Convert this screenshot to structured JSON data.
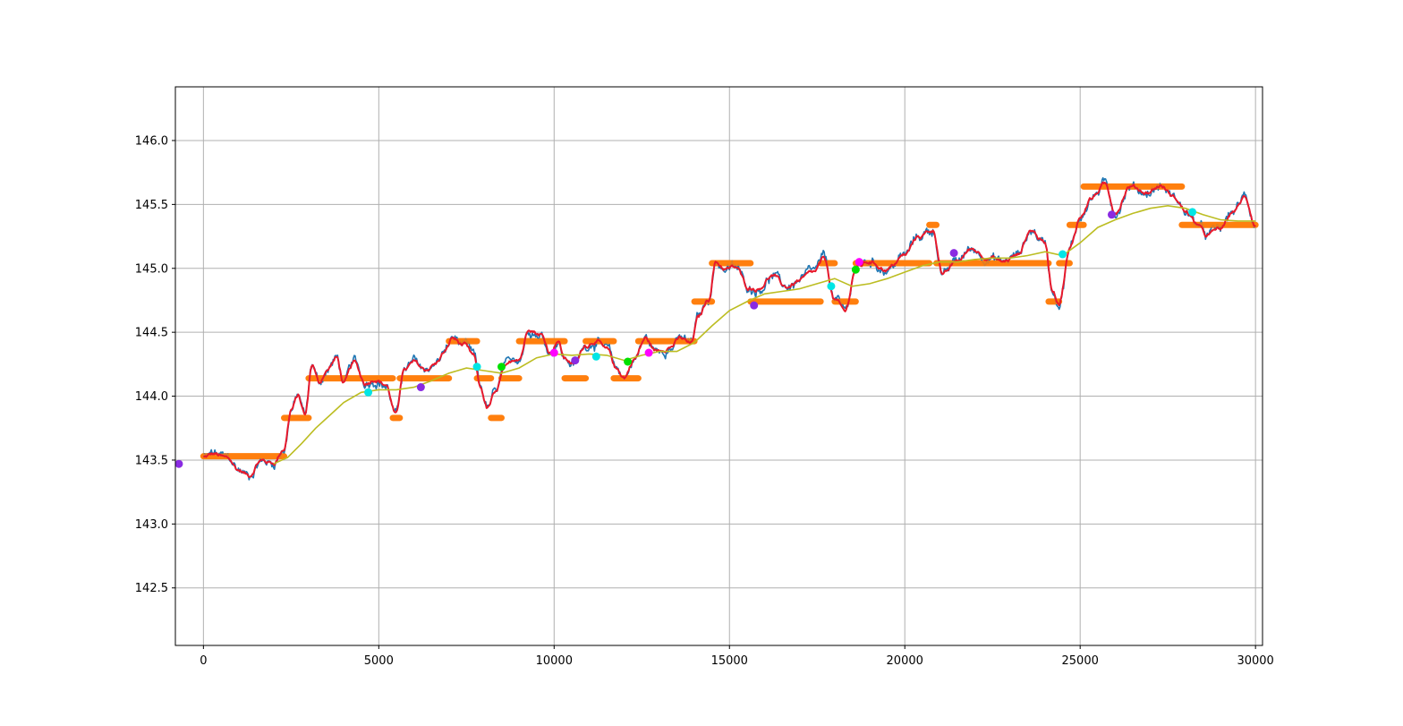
{
  "chart_data": {
    "type": "line",
    "title": "",
    "xlabel": "",
    "ylabel": "",
    "xlim": [
      -800,
      30200
    ],
    "ylim": [
      142.05,
      146.42
    ],
    "grid": true,
    "xticks": [
      0,
      5000,
      10000,
      15000,
      20000,
      25000,
      30000
    ],
    "xtick_labels": [
      "0",
      "5000",
      "10000",
      "15000",
      "20000",
      "25000",
      "30000"
    ],
    "yticks": [
      142.5,
      143.0,
      143.5,
      144.0,
      144.5,
      145.0,
      145.5,
      146.0
    ],
    "ytick_labels": [
      "142.5",
      "143.0",
      "143.5",
      "144.0",
      "144.5",
      "145.0",
      "145.5",
      "146.0"
    ],
    "colors": {
      "price": "#1f77b4",
      "smoothed": "#e8192c",
      "moving_average": "#bcbd22",
      "levels": "#ff7f0e",
      "grid": "#b0b0b0",
      "marker_purple": "#8a2be2",
      "marker_cyan": "#00e5e5",
      "marker_green": "#00e000",
      "marker_magenta": "#ff00ff"
    },
    "price_anchors": [
      [
        0,
        143.52
      ],
      [
        300,
        143.54
      ],
      [
        700,
        143.5
      ],
      [
        1000,
        143.42
      ],
      [
        1300,
        143.38
      ],
      [
        1600,
        143.5
      ],
      [
        2000,
        143.48
      ],
      [
        2300,
        143.6
      ],
      [
        2500,
        143.9
      ],
      [
        2700,
        144.0
      ],
      [
        2900,
        143.85
      ],
      [
        3100,
        144.25
      ],
      [
        3300,
        144.1
      ],
      [
        3500,
        144.2
      ],
      [
        3800,
        144.3
      ],
      [
        4000,
        144.1
      ],
      [
        4300,
        144.25
      ],
      [
        4600,
        144.1
      ],
      [
        4900,
        144.15
      ],
      [
        5200,
        144.1
      ],
      [
        5500,
        143.85
      ],
      [
        5700,
        144.2
      ],
      [
        6000,
        144.25
      ],
      [
        6300,
        144.2
      ],
      [
        6600,
        144.25
      ],
      [
        6900,
        144.35
      ],
      [
        7100,
        144.45
      ],
      [
        7400,
        144.4
      ],
      [
        7700,
        144.3
      ],
      [
        7900,
        144.05
      ],
      [
        8100,
        143.9
      ],
      [
        8300,
        144.0
      ],
      [
        8600,
        144.2
      ],
      [
        9000,
        144.3
      ],
      [
        9300,
        144.55
      ],
      [
        9600,
        144.5
      ],
      [
        9900,
        144.35
      ],
      [
        10100,
        144.45
      ],
      [
        10300,
        144.3
      ],
      [
        10600,
        144.25
      ],
      [
        10900,
        144.4
      ],
      [
        11200,
        144.45
      ],
      [
        11500,
        144.35
      ],
      [
        11800,
        144.2
      ],
      [
        12000,
        144.15
      ],
      [
        12300,
        144.3
      ],
      [
        12600,
        144.45
      ],
      [
        12900,
        144.35
      ],
      [
        13300,
        144.4
      ],
      [
        13600,
        144.45
      ],
      [
        13900,
        144.4
      ],
      [
        14100,
        144.6
      ],
      [
        14400,
        144.75
      ],
      [
        14600,
        145.05
      ],
      [
        14900,
        145.0
      ],
      [
        15200,
        145.0
      ],
      [
        15500,
        144.85
      ],
      [
        15800,
        144.85
      ],
      [
        16200,
        144.95
      ],
      [
        16600,
        144.85
      ],
      [
        17000,
        144.9
      ],
      [
        17400,
        144.95
      ],
      [
        17700,
        145.05
      ],
      [
        18000,
        144.75
      ],
      [
        18300,
        144.65
      ],
      [
        18600,
        145.0
      ],
      [
        19000,
        145.05
      ],
      [
        19500,
        145.0
      ],
      [
        20000,
        145.1
      ],
      [
        20400,
        145.25
      ],
      [
        20800,
        145.3
      ],
      [
        21100,
        144.95
      ],
      [
        21500,
        145.05
      ],
      [
        21900,
        145.15
      ],
      [
        22400,
        145.1
      ],
      [
        22800,
        145.05
      ],
      [
        23200,
        145.1
      ],
      [
        23600,
        145.3
      ],
      [
        24000,
        145.2
      ],
      [
        24200,
        144.85
      ],
      [
        24400,
        144.75
      ],
      [
        24700,
        145.15
      ],
      [
        25000,
        145.4
      ],
      [
        25300,
        145.55
      ],
      [
        25700,
        145.65
      ],
      [
        26000,
        145.45
      ],
      [
        26400,
        145.65
      ],
      [
        26900,
        145.6
      ],
      [
        27300,
        145.65
      ],
      [
        27700,
        145.55
      ],
      [
        28000,
        145.45
      ],
      [
        28300,
        145.35
      ],
      [
        28600,
        145.25
      ],
      [
        29000,
        145.3
      ],
      [
        29400,
        145.45
      ],
      [
        29700,
        145.55
      ],
      [
        30000,
        145.35
      ]
    ],
    "moving_average": [
      [
        2000,
        143.47
      ],
      [
        2400,
        143.52
      ],
      [
        2800,
        143.63
      ],
      [
        3200,
        143.75
      ],
      [
        3600,
        143.85
      ],
      [
        4000,
        143.95
      ],
      [
        4500,
        144.03
      ],
      [
        5000,
        144.05
      ],
      [
        5500,
        144.05
      ],
      [
        6000,
        144.07
      ],
      [
        6500,
        144.12
      ],
      [
        7000,
        144.18
      ],
      [
        7500,
        144.22
      ],
      [
        8000,
        144.2
      ],
      [
        8500,
        144.18
      ],
      [
        9000,
        144.22
      ],
      [
        9500,
        144.3
      ],
      [
        10000,
        144.33
      ],
      [
        10500,
        144.32
      ],
      [
        11000,
        144.33
      ],
      [
        11500,
        144.32
      ],
      [
        12000,
        144.28
      ],
      [
        12500,
        144.32
      ],
      [
        13000,
        144.35
      ],
      [
        13500,
        144.35
      ],
      [
        14000,
        144.42
      ],
      [
        14500,
        144.55
      ],
      [
        15000,
        144.67
      ],
      [
        15500,
        144.74
      ],
      [
        16000,
        144.8
      ],
      [
        16500,
        144.82
      ],
      [
        17000,
        144.84
      ],
      [
        17500,
        144.88
      ],
      [
        18000,
        144.92
      ],
      [
        18500,
        144.86
      ],
      [
        19000,
        144.88
      ],
      [
        19500,
        144.92
      ],
      [
        20000,
        144.97
      ],
      [
        20500,
        145.02
      ],
      [
        21000,
        145.05
      ],
      [
        21500,
        145.05
      ],
      [
        22000,
        145.07
      ],
      [
        22500,
        145.08
      ],
      [
        23000,
        145.08
      ],
      [
        23500,
        145.1
      ],
      [
        24000,
        145.13
      ],
      [
        24500,
        145.1
      ],
      [
        25000,
        145.2
      ],
      [
        25500,
        145.32
      ],
      [
        26000,
        145.38
      ],
      [
        26500,
        145.43
      ],
      [
        27000,
        145.47
      ],
      [
        27500,
        145.49
      ],
      [
        28000,
        145.47
      ],
      [
        28500,
        145.42
      ],
      [
        29000,
        145.38
      ],
      [
        29500,
        145.37
      ],
      [
        30000,
        145.37
      ]
    ],
    "levels": [
      [
        0,
        2300,
        143.53
      ],
      [
        2300,
        3000,
        143.83
      ],
      [
        3000,
        5400,
        144.14
      ],
      [
        5400,
        5600,
        143.83
      ],
      [
        5600,
        7000,
        144.14
      ],
      [
        7000,
        7800,
        144.43
      ],
      [
        7800,
        8200,
        144.14
      ],
      [
        8200,
        8500,
        143.83
      ],
      [
        8500,
        9000,
        144.14
      ],
      [
        9000,
        10300,
        144.43
      ],
      [
        10300,
        10900,
        144.14
      ],
      [
        10900,
        11700,
        144.43
      ],
      [
        11700,
        12400,
        144.14
      ],
      [
        12400,
        14000,
        144.43
      ],
      [
        14000,
        14500,
        144.74
      ],
      [
        14500,
        15600,
        145.04
      ],
      [
        15600,
        17600,
        144.74
      ],
      [
        17600,
        18000,
        145.04
      ],
      [
        18000,
        18600,
        144.74
      ],
      [
        18600,
        20700,
        145.04
      ],
      [
        20700,
        20900,
        145.34
      ],
      [
        20900,
        24100,
        145.04
      ],
      [
        24100,
        24400,
        144.74
      ],
      [
        24400,
        24700,
        145.04
      ],
      [
        24700,
        25100,
        145.34
      ],
      [
        25100,
        27900,
        145.64
      ],
      [
        27900,
        30000,
        145.34
      ]
    ],
    "markers": [
      {
        "x": -700,
        "y": 143.47,
        "color": "#8a2be2"
      },
      {
        "x": 4700,
        "y": 144.03,
        "color": "#00e5e5"
      },
      {
        "x": 6200,
        "y": 144.07,
        "color": "#8a2be2"
      },
      {
        "x": 7800,
        "y": 144.23,
        "color": "#00e5e5"
      },
      {
        "x": 8500,
        "y": 144.23,
        "color": "#00e000"
      },
      {
        "x": 10000,
        "y": 144.34,
        "color": "#ff00ff"
      },
      {
        "x": 10600,
        "y": 144.28,
        "color": "#8a2be2"
      },
      {
        "x": 11200,
        "y": 144.31,
        "color": "#00e5e5"
      },
      {
        "x": 12100,
        "y": 144.27,
        "color": "#00e000"
      },
      {
        "x": 12700,
        "y": 144.34,
        "color": "#ff00ff"
      },
      {
        "x": 15700,
        "y": 144.71,
        "color": "#8a2be2"
      },
      {
        "x": 17900,
        "y": 144.86,
        "color": "#00e5e5"
      },
      {
        "x": 18600,
        "y": 144.99,
        "color": "#00e000"
      },
      {
        "x": 18700,
        "y": 145.05,
        "color": "#ff00ff"
      },
      {
        "x": 21400,
        "y": 145.12,
        "color": "#8a2be2"
      },
      {
        "x": 24500,
        "y": 145.11,
        "color": "#00e5e5"
      },
      {
        "x": 25900,
        "y": 145.42,
        "color": "#8a2be2"
      },
      {
        "x": 28200,
        "y": 145.44,
        "color": "#00e5e5"
      }
    ]
  }
}
